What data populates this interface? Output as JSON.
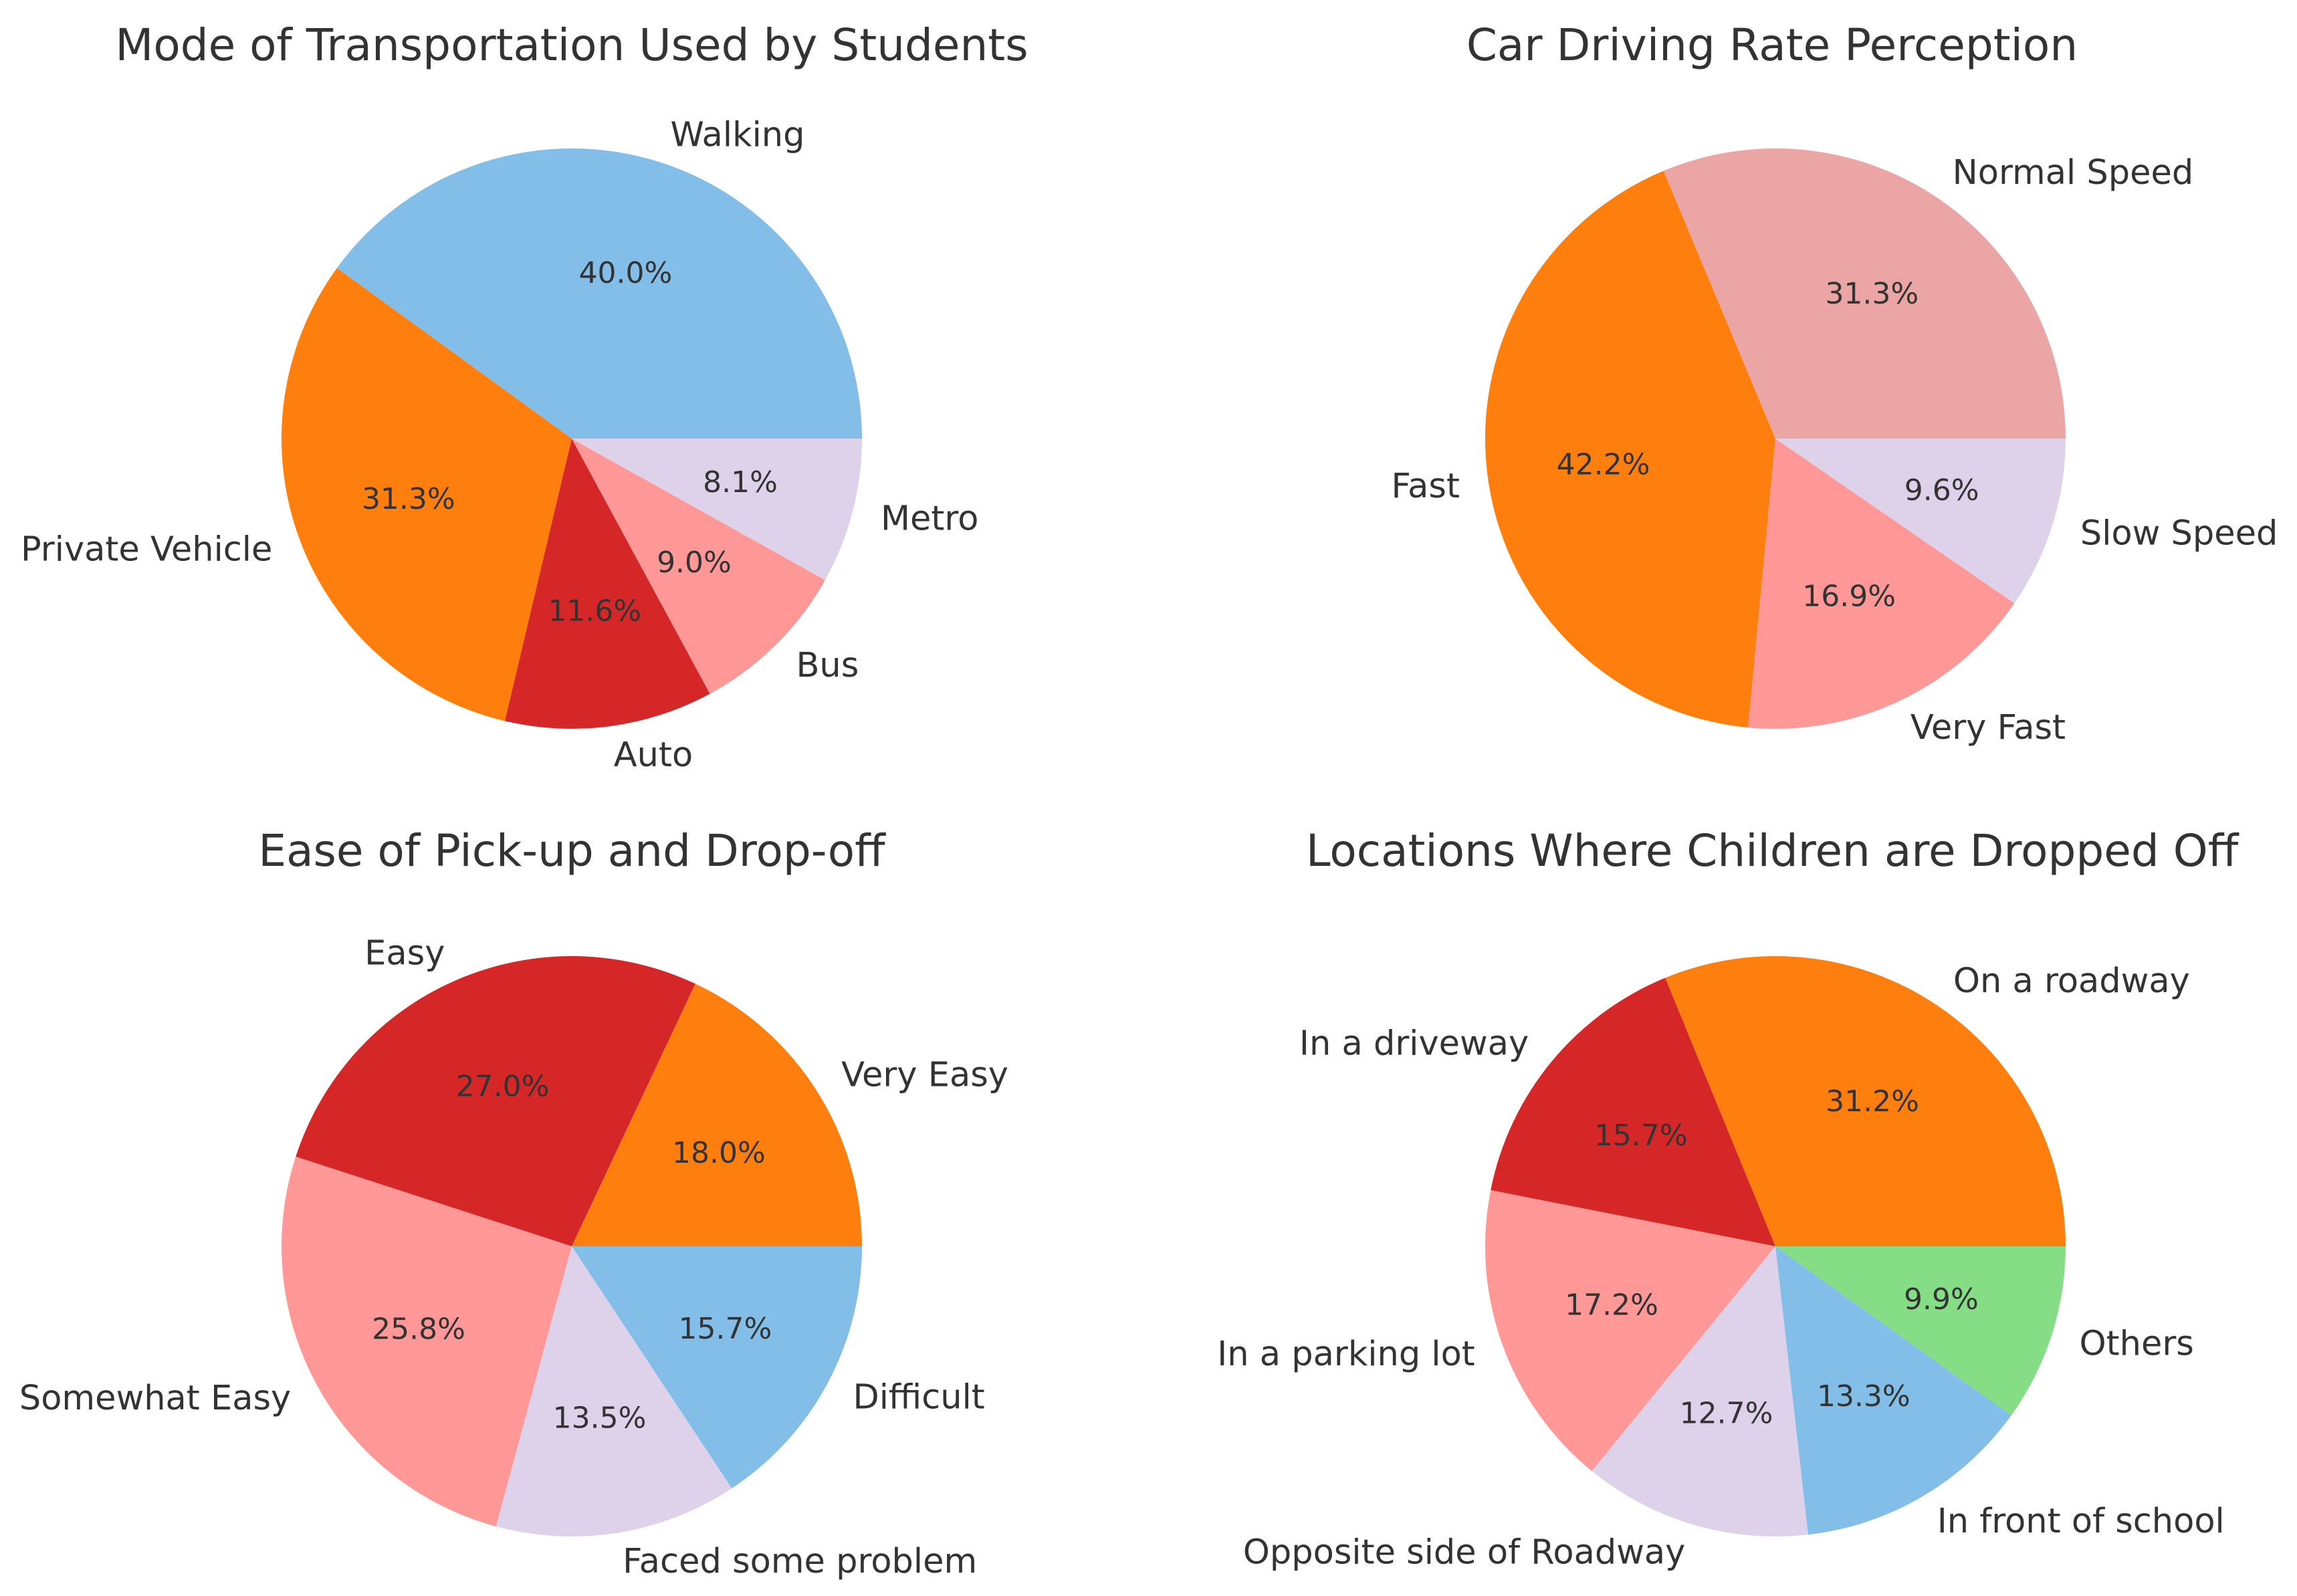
{
  "chart_data": [
    {
      "type": "pie",
      "title": "Mode of Transportation Used by Students",
      "categories": [
        "Walking",
        "Private Vehicle",
        "Auto",
        "Bus",
        "Metro"
      ],
      "values": [
        40.0,
        31.3,
        11.6,
        9.0,
        8.1
      ],
      "value_labels": [
        "40.0%",
        "31.3%",
        "11.6%",
        "9.0%",
        "8.1%"
      ],
      "colors": [
        "#82BEE8",
        "#FF7F0E",
        "#D62728",
        "#FF9896",
        "#DED2EB"
      ],
      "start_angle_deg": 0,
      "direction": "counterclockwise"
    },
    {
      "type": "pie",
      "title": "Car Driving Rate Perception",
      "categories": [
        "Normal Speed",
        "Fast",
        "Very Fast",
        "Slow Speed"
      ],
      "values": [
        31.3,
        42.2,
        16.9,
        9.6
      ],
      "value_labels": [
        "31.3%",
        "42.2%",
        "16.9%",
        "9.6%"
      ],
      "colors": [
        "#ECA5A5",
        "#FF7F0E",
        "#FF9896",
        "#DED2EB"
      ],
      "start_angle_deg": 0,
      "direction": "counterclockwise"
    },
    {
      "type": "pie",
      "title": "Ease of Pick-up and Drop-off",
      "categories": [
        "Very Easy",
        "Easy",
        "Somewhat Easy",
        "Faced some problem",
        "Difficult"
      ],
      "values": [
        18.0,
        27.0,
        25.8,
        13.5,
        15.7
      ],
      "value_labels": [
        "18.0%",
        "27.0%",
        "25.8%",
        "13.5%",
        "15.7%"
      ],
      "colors": [
        "#FF7F0E",
        "#D62728",
        "#FF9896",
        "#DED2EB",
        "#82BEE8"
      ],
      "start_angle_deg": 0,
      "direction": "counterclockwise"
    },
    {
      "type": "pie",
      "title": "Locations Where Children are Dropped Off",
      "categories": [
        "On a roadway",
        "In a driveway",
        "In a parking lot",
        "Opposite side of Roadway",
        "In front of school",
        "Others"
      ],
      "values": [
        31.2,
        15.7,
        17.2,
        12.7,
        13.3,
        9.9
      ],
      "value_labels": [
        "31.2%",
        "15.7%",
        "17.2%",
        "12.7%",
        "13.3%",
        "9.9%"
      ],
      "colors": [
        "#FF7F0E",
        "#D62728",
        "#FF9896",
        "#DED2EB",
        "#82BEE8",
        "#85DE85"
      ],
      "start_angle_deg": 0,
      "direction": "counterclockwise"
    }
  ]
}
